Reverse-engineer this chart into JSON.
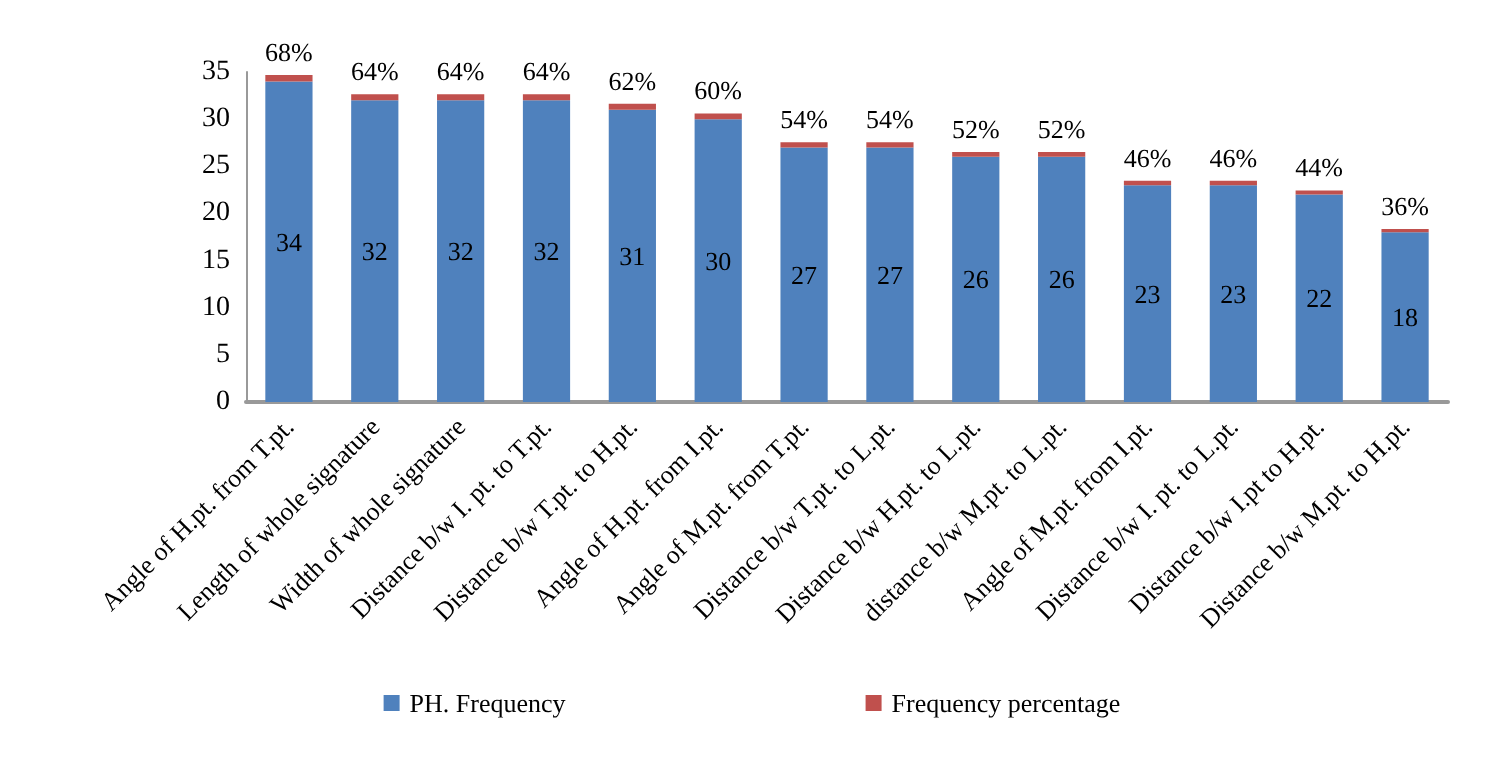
{
  "chart_data": {
    "type": "bar",
    "stacked": true,
    "categories": [
      "Angle of H.pt. from T.pt.",
      "Length of whole signature",
      "Width of whole signature",
      "Distance b/w I. pt. to T.pt.",
      "Distance b/w T.pt. to H.pt.",
      "Angle of H.pt. from I.pt.",
      "Angle of M.pt. from T.pt.",
      "Distance b/w T.pt. to L.pt.",
      "Distance b/w H.pt. to L.pt.",
      "distance b/w M.pt. to L.pt.",
      "Angle of M.pt. from I.pt.",
      "Distance b/w I. pt. to L.pt.",
      "Distance b/w I.pt to H.pt.",
      "Distance b/w M.pt. to H.pt."
    ],
    "series": [
      {
        "name": "PH. Frequency",
        "color": "#4f81bd",
        "values": [
          34,
          32,
          32,
          32,
          31,
          30,
          27,
          27,
          26,
          26,
          23,
          23,
          22,
          18
        ],
        "value_labels": [
          "34",
          "32",
          "32",
          "32",
          "31",
          "30",
          "27",
          "27",
          "26",
          "26",
          "23",
          "23",
          "22",
          "18"
        ]
      },
      {
        "name": "Frequency percentage",
        "color": "#c0504d",
        "values": [
          0.68,
          0.64,
          0.64,
          0.64,
          0.62,
          0.6,
          0.54,
          0.54,
          0.52,
          0.52,
          0.46,
          0.46,
          0.44,
          0.36
        ],
        "value_labels": [
          "68%",
          "64%",
          "64%",
          "64%",
          "62%",
          "60%",
          "54%",
          "54%",
          "52%",
          "52%",
          "46%",
          "46%",
          "44%",
          "36%"
        ]
      }
    ],
    "ylim": [
      0,
      35
    ],
    "yticks": [
      0,
      5,
      10,
      15,
      20,
      25,
      30,
      35
    ],
    "grid": false,
    "legend": "bottom"
  }
}
